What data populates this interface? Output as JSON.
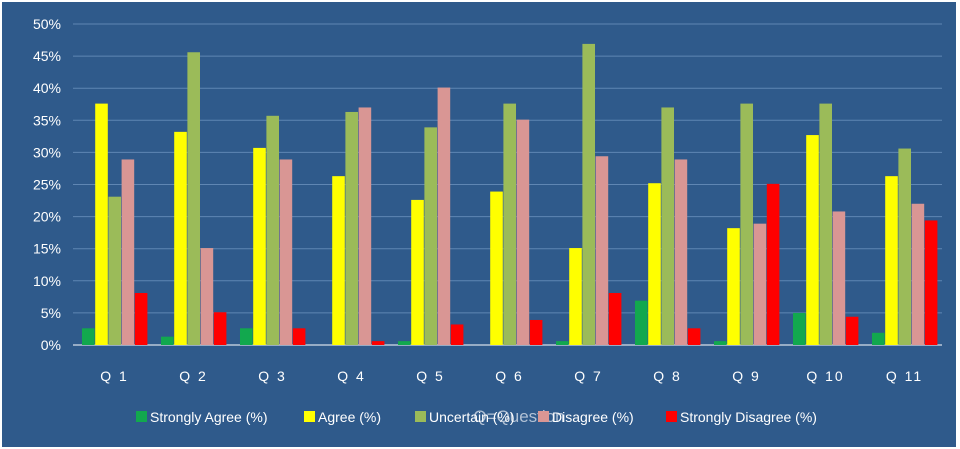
{
  "chart_data": {
    "type": "bar",
    "categories": [
      "Q  1",
      "Q  2",
      "Q  3",
      "Q  4",
      "Q  5",
      "Q  6",
      "Q  7",
      "Q  8",
      "Q  9",
      "Q  10",
      "Q  11"
    ],
    "series": [
      {
        "name": "Strongly Agree (%)",
        "color": "#12a84e",
        "values": [
          2.6,
          1.3,
          2.6,
          0,
          0.6,
          0,
          0.6,
          6.9,
          0.6,
          5.0,
          1.9
        ]
      },
      {
        "name": "Agree  (%)",
        "color": "#ffff00",
        "values": [
          37.6,
          33.2,
          30.7,
          26.3,
          22.6,
          23.9,
          15.1,
          25.2,
          18.2,
          32.7,
          26.3
        ]
      },
      {
        "name": "Uncertain (%)",
        "color": "#9bbb59",
        "values": [
          23.1,
          45.6,
          35.7,
          36.3,
          33.9,
          37.6,
          46.9,
          37.0,
          37.6,
          37.6,
          30.6
        ]
      },
      {
        "name": "Disagree (%)",
        "color": "#d99694",
        "values": [
          28.9,
          15.1,
          28.9,
          37.0,
          40.1,
          35.1,
          29.4,
          28.9,
          18.9,
          20.8,
          22.0
        ]
      },
      {
        "name": "Strongly Disagree  (%)",
        "color": "#ff0000",
        "values": [
          8.1,
          5.1,
          2.6,
          0.6,
          3.2,
          3.9,
          8.1,
          2.6,
          25.1,
          4.4,
          19.4
        ]
      }
    ],
    "xlabel": "Q=Question",
    "ylabel": "",
    "ylim": [
      0,
      50
    ],
    "yticks": [
      "0%",
      "5%",
      "10%",
      "15%",
      "20%",
      "25%",
      "30%",
      "35%",
      "40%",
      "45%",
      "50%"
    ],
    "grid": true,
    "legend_position": "bottom",
    "colors": {
      "background": "#2f5a8b",
      "grid": "#5f86b3",
      "axis": "#ffffff"
    }
  }
}
